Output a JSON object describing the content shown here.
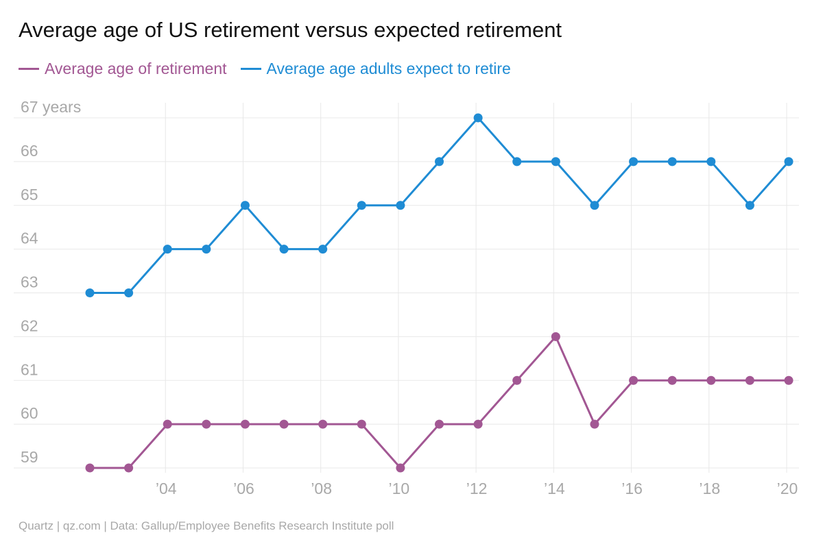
{
  "colors": {
    "series_1": "#a25793",
    "series_2": "#1f8cd4",
    "grid": "#e8e8e8",
    "tick_label": "#a8a8a8",
    "title": "#111111"
  },
  "source_note": "Quartz | qz.com | Data: Gallup/Employee Benefits Research Institute poll",
  "chart_data": {
    "type": "line",
    "title": "Average age of US retirement versus expected retirement",
    "xlabel": "",
    "ylabel": "",
    "x": [
      2002,
      2003,
      2004,
      2005,
      2006,
      2007,
      2008,
      2009,
      2010,
      2011,
      2012,
      2013,
      2014,
      2015,
      2016,
      2017,
      2018,
      2019,
      2020
    ],
    "x_ticks": [
      2004,
      2006,
      2008,
      2010,
      2012,
      2014,
      2016,
      2018,
      2020
    ],
    "x_tick_labels": [
      "’04",
      "’06",
      "’08",
      "’10",
      "’12",
      "’14",
      "’16",
      "’18",
      "’20"
    ],
    "y_ticks": [
      59,
      60,
      61,
      62,
      63,
      64,
      65,
      66,
      67
    ],
    "y_tick_labels": [
      "59",
      "60",
      "61",
      "62",
      "63",
      "64",
      "65",
      "66",
      "67 years"
    ],
    "ylim": [
      58.9,
      67.15
    ],
    "grid": true,
    "legend_position": "top-left",
    "series": [
      {
        "name": "Average age of retirement",
        "color": "#a25793",
        "values": [
          59,
          59,
          60,
          60,
          60,
          60,
          60,
          60,
          59,
          60,
          60,
          61,
          62,
          60,
          61,
          61,
          61,
          61,
          61
        ]
      },
      {
        "name": "Average age adults expect to retire",
        "color": "#1f8cd4",
        "values": [
          63,
          63,
          64,
          64,
          65,
          64,
          64,
          65,
          65,
          66,
          67,
          66,
          66,
          65,
          66,
          66,
          66,
          65,
          66
        ]
      }
    ]
  }
}
